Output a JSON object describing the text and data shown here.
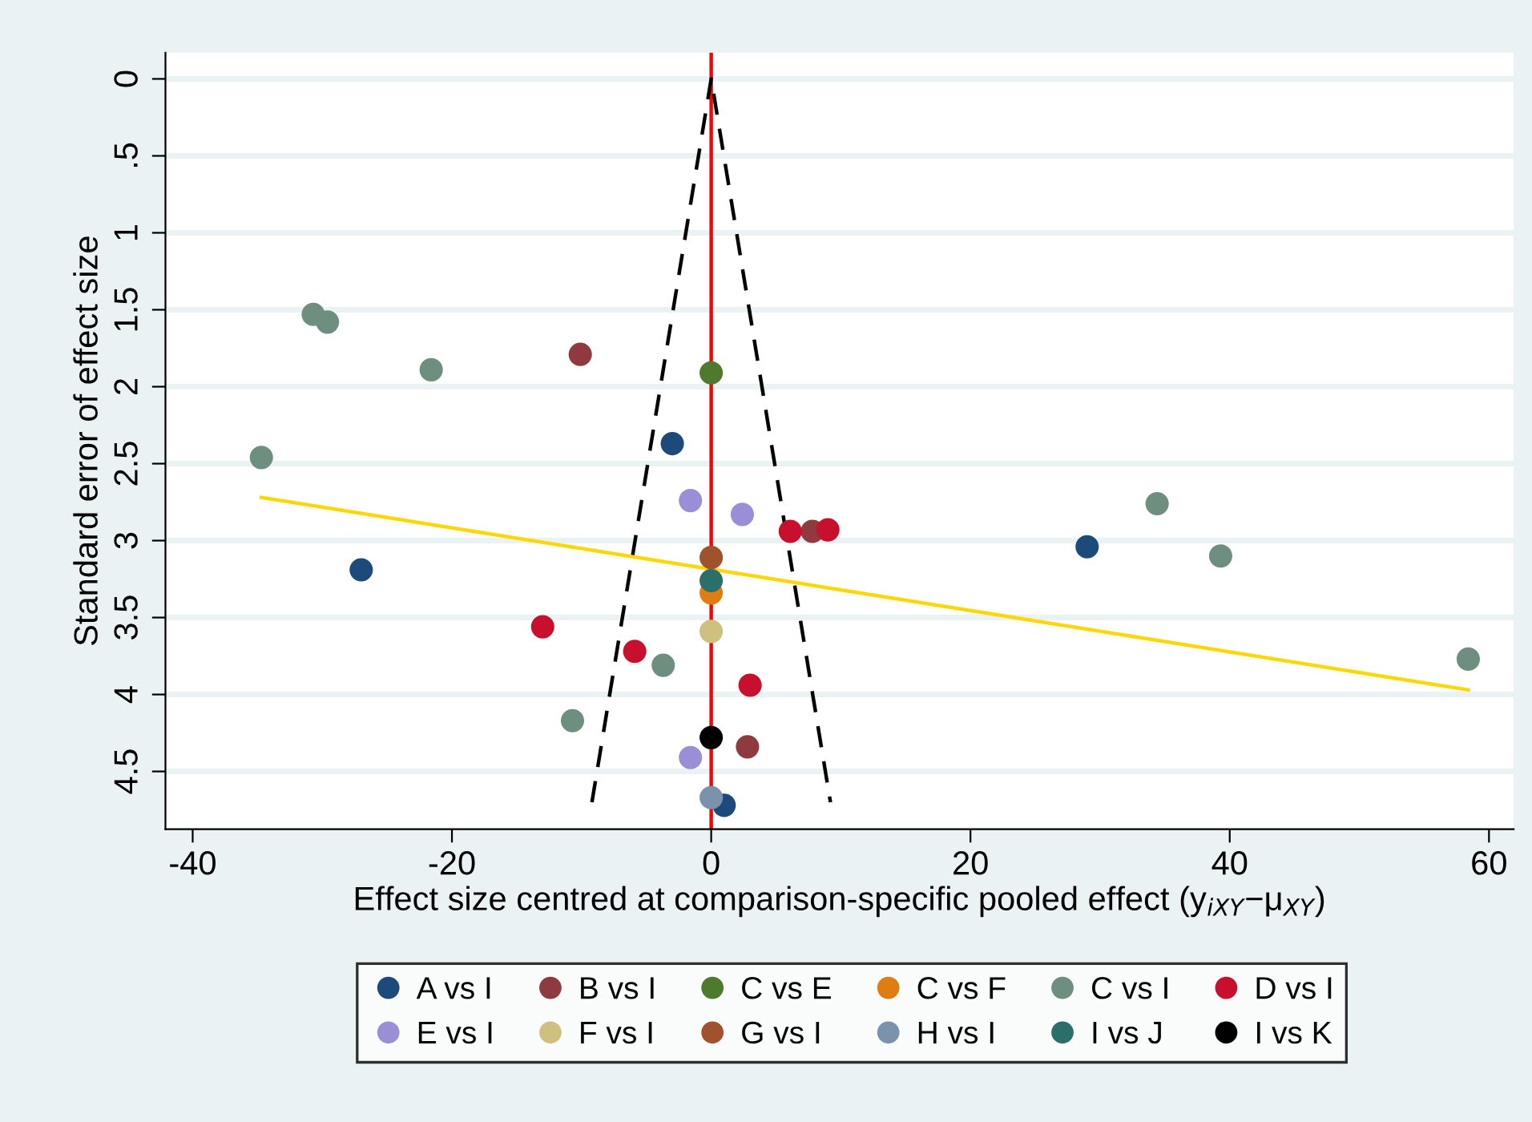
{
  "chart_data": {
    "type": "scatter",
    "xlabel": "Effect size centred at comparison-specific pooled effect (y$_{iXY}$−μ$_{XY}$)",
    "ylabel": "Standard error of effect size",
    "xlim": [
      -42.1,
      61.9
    ],
    "xticks": [
      -40,
      -20,
      0,
      20,
      40,
      60
    ],
    "ylim": [
      4.875,
      -0.17
    ],
    "yticks": [
      0,
      {
        "value": 0.5,
        "label": ".5"
      },
      1,
      1.5,
      2,
      2.5,
      3,
      3.5,
      4,
      4.5
    ],
    "grid": "y",
    "legend": "bottom",
    "marker": "circle",
    "ref_lines": [
      {
        "axis": "x",
        "value": 0,
        "color": "#ff0000"
      }
    ],
    "series": [
      {
        "name": "A vs I",
        "color": "#1c4a7a",
        "x": [
          -3.0,
          -27.0,
          29.0,
          1.0
        ],
        "values": [
          2.37,
          3.19,
          3.04,
          4.72
        ]
      },
      {
        "name": "B vs I",
        "color": "#8e3a3f",
        "x": [
          -10.1,
          7.8,
          2.8
        ],
        "values": [
          1.79,
          2.94,
          4.34
        ]
      },
      {
        "name": "C vs E",
        "color": "#4e7a2e",
        "x": [
          0
        ],
        "values": [
          1.91
        ]
      },
      {
        "name": "C vs F",
        "color": "#e07d10",
        "x": [
          0
        ],
        "values": [
          3.34
        ]
      },
      {
        "name": "C vs I",
        "color": "#6e8e80",
        "x": [
          -30.7,
          -29.6,
          -21.6,
          -34.7,
          -3.7,
          -10.7,
          34.4,
          39.3,
          58.4
        ],
        "values": [
          1.53,
          1.58,
          1.89,
          2.46,
          3.81,
          4.17,
          2.76,
          3.1,
          3.77
        ]
      },
      {
        "name": "D vs I",
        "color": "#c8102e",
        "x": [
          6.1,
          9.0,
          -13.0,
          -5.9,
          3.0
        ],
        "values": [
          2.94,
          2.93,
          3.56,
          3.72,
          3.94
        ]
      },
      {
        "name": "E vs I",
        "color": "#9a8fd6",
        "x": [
          -1.6,
          2.4,
          -1.6
        ],
        "values": [
          2.74,
          2.83,
          4.41
        ]
      },
      {
        "name": "F vs I",
        "color": "#cfc07f",
        "x": [
          0
        ],
        "values": [
          3.59
        ]
      },
      {
        "name": "G vs I",
        "color": "#a0522d",
        "x": [
          0
        ],
        "values": [
          3.11
        ]
      },
      {
        "name": "H vs I",
        "color": "#7a93ab",
        "x": [
          0
        ],
        "values": [
          4.67
        ]
      },
      {
        "name": "I vs J",
        "color": "#2a6f6a",
        "x": [
          0
        ],
        "values": [
          3.26
        ]
      },
      {
        "name": "I vs K",
        "color": "#000000",
        "x": [
          0
        ],
        "values": [
          4.28
        ]
      },
      {
        "type": "line",
        "color": "#000000",
        "line_style": "dashed",
        "marker": "none",
        "x": [
          -9.2,
          0,
          9.2
        ],
        "values": [
          4.7,
          0,
          4.7
        ]
      },
      {
        "type": "line",
        "color": "#ffd700",
        "line_style": "solid",
        "marker": "none",
        "x": [
          -34.7,
          58.4
        ],
        "values": [
          2.72,
          3.97
        ]
      }
    ]
  }
}
